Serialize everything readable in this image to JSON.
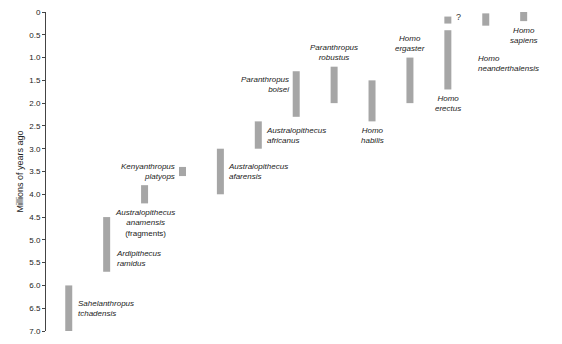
{
  "chart_data": {
    "type": "range",
    "y_label": "Millions of years ago",
    "categories": [
      "Sahelanthropus tchadensis",
      "Ardipithecus ramidus",
      "Australopithecus anamensis",
      "Kenyanthropus platyops",
      "Australopithecus afarensis",
      "Australopithecus africanus",
      "Paranthropus boisei",
      "Paranthropus robustus",
      "Homo habilis",
      "Homo ergaster",
      "Homo erectus",
      "Homo neanderthalensis",
      "Homo sapiens"
    ],
    "notes": [
      null,
      null,
      "(fragments)",
      null,
      null,
      null,
      null,
      null,
      null,
      null,
      null,
      null,
      null
    ],
    "ranges": [
      [
        6.0,
        7.0
      ],
      [
        4.5,
        5.7
      ],
      [
        3.8,
        4.2
      ],
      [
        3.4,
        3.6
      ],
      [
        3.0,
        4.0
      ],
      [
        2.4,
        3.0
      ],
      [
        1.3,
        2.3
      ],
      [
        1.2,
        2.0
      ],
      [
        1.5,
        2.4
      ],
      [
        1.0,
        2.0
      ],
      [
        0.4,
        1.7
      ],
      [
        0.03,
        0.3
      ],
      [
        0,
        0.2
      ]
    ],
    "uncertain_ranges": [
      null,
      null,
      null,
      null,
      null,
      null,
      null,
      null,
      null,
      null,
      [
        0.1,
        0.4
      ],
      null,
      null
    ],
    "uncertain_label": "?",
    "color": "#a6a6a6",
    "ylim": [
      7.0,
      0
    ],
    "yticks": [
      0,
      0.5,
      {
        "value": 1,
        "label": "1.0"
      },
      1.5,
      {
        "value": 2,
        "label": "2.0"
      },
      2.5,
      {
        "value": 3,
        "label": "3.0"
      },
      3.5,
      {
        "value": 4,
        "label": "4.0"
      },
      4.5,
      {
        "value": 5,
        "label": "5.0"
      },
      5.5,
      {
        "value": 6,
        "label": "6.0"
      },
      6.5,
      {
        "value": 7,
        "label": "7.0"
      }
    ],
    "grid": false,
    "tick_labels": "y"
  }
}
